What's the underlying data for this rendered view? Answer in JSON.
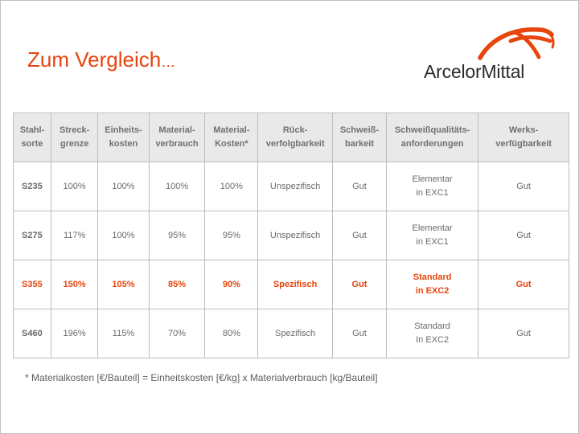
{
  "header": {
    "title": "Zum Vergleich",
    "title_suffix": "…"
  },
  "logo": {
    "text": "ArcelorMittal",
    "icon": "arc-swoosh-logo-icon"
  },
  "comparison_table": {
    "columns": [
      [
        "Stahl-",
        "sorte"
      ],
      [
        "Streck-",
        "grenze"
      ],
      [
        "Einheits-",
        "kosten"
      ],
      [
        "Material-",
        "verbrauch"
      ],
      [
        "Material-",
        "Kosten*"
      ],
      [
        "Rück-",
        "verfolgbarkeit"
      ],
      [
        "Schweiß-",
        "barkeit"
      ],
      [
        "Schweißqualitäts-",
        "anforderungen"
      ],
      [
        "Werks-",
        "verfügbarkeit"
      ]
    ],
    "rows": [
      {
        "highlight": false,
        "cells": [
          "S235",
          "100%",
          "100%",
          "100%",
          "100%",
          "Unspezifisch",
          "Gut",
          [
            "Elementar",
            "in EXC1"
          ],
          "Gut"
        ]
      },
      {
        "highlight": false,
        "cells": [
          "S275",
          "117%",
          "100%",
          "95%",
          "95%",
          "Unspezifisch",
          "Gut",
          [
            "Elementar",
            "in EXC1"
          ],
          "Gut"
        ]
      },
      {
        "highlight": true,
        "cells": [
          "S355",
          "150%",
          "105%",
          "85%",
          "90%",
          "Spezifisch",
          "Gut",
          [
            "Standard",
            "in EXC2"
          ],
          "Gut"
        ]
      },
      {
        "highlight": false,
        "cells": [
          "S460",
          "196%",
          "115%",
          "70%",
          "80%",
          "Spezifisch",
          "Gut",
          [
            "Standard",
            "In EXC2"
          ],
          "Gut"
        ]
      }
    ]
  },
  "footnote": "* Materialkosten [€/Bauteil] = Einheitskosten [€/kg] x Materialverbrauch [kg/Bauteil]",
  "colors": {
    "accent": "#e8440d",
    "text": "#6a6a6a",
    "header_background": "#e9e9e9",
    "border": "#bdbdbd",
    "logo_text": "#2b2b2b"
  }
}
